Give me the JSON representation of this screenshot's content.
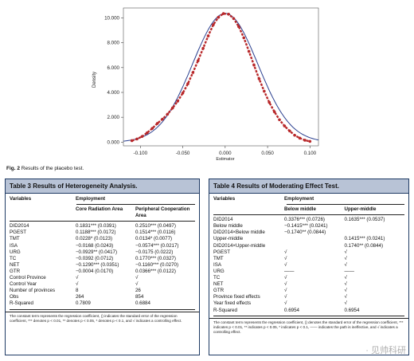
{
  "figure": {
    "caption_label": "Fig. 2",
    "caption_text": "Results of the placebo test.",
    "ylabel": "Density",
    "xlabel": "Estimator"
  },
  "chart_data": {
    "type": "scatter",
    "title": "",
    "xlabel": "Estimator",
    "ylabel": "Density",
    "xlim": [
      -0.12,
      0.11
    ],
    "ylim": [
      -0.3,
      10.8
    ],
    "x_ticks": [
      "-0.100",
      "-0.050",
      "0.000",
      "0.050",
      "0.100"
    ],
    "x_tick_values": [
      -0.1,
      -0.05,
      0.0,
      0.05,
      0.1
    ],
    "y_ticks": [
      "0.000",
      "2.000",
      "4.000",
      "6.000",
      "8.000",
      "10.000"
    ],
    "y_tick_values": [
      0,
      2,
      4,
      6,
      8,
      10
    ],
    "series": [
      {
        "kind": "kernel-density points (red dashed)",
        "color": "#b8282a",
        "x": [
          -0.11,
          -0.104,
          -0.098,
          -0.092,
          -0.086,
          -0.08,
          -0.074,
          -0.068,
          -0.062,
          -0.056,
          -0.05,
          -0.044,
          -0.038,
          -0.032,
          -0.026,
          -0.02,
          -0.014,
          -0.008,
          -0.002,
          0.004,
          0.01,
          0.016,
          0.022,
          0.028,
          0.034,
          0.04,
          0.046,
          0.052,
          0.058,
          0.064,
          0.07,
          0.076,
          0.082,
          0.088,
          0.094,
          0.1
        ],
        "y": [
          0.12,
          0.25,
          0.45,
          0.75,
          1.1,
          1.5,
          1.85,
          2.25,
          2.75,
          3.3,
          3.95,
          4.7,
          5.6,
          6.55,
          7.55,
          8.55,
          9.45,
          10.05,
          10.35,
          10.3,
          9.95,
          9.3,
          8.4,
          7.3,
          6.2,
          5.1,
          4.1,
          3.2,
          2.45,
          1.8,
          1.3,
          0.9,
          0.55,
          0.32,
          0.15,
          0.06
        ]
      },
      {
        "kind": "normal density (blue line)",
        "color": "#2a3f8f",
        "mean": 0.0,
        "sd": 0.0385
      }
    ]
  },
  "table3": {
    "title": "Table 3 Results of Heterogeneity Analysis.",
    "col_group": "Employment",
    "headers": [
      "Variables",
      "Core Radiation Area",
      "Peripheral Cooperation Area"
    ],
    "rows": [
      [
        "DID2014",
        "0.1831*** (0.0391)",
        "0.2510*** (0.0497)"
      ],
      [
        "PGEST",
        "0.1188*** (0.0172)",
        "0.1514*** (0.0116)"
      ],
      [
        "TMT",
        "0.0228* (0.0123)",
        "0.0134* (0.0077)"
      ],
      [
        "ISA",
        "−0.0168 (0.0243)",
        "−0.0574*** (0.0217)"
      ],
      [
        "URG",
        "−0.0929** (0.0417)",
        "−0.0175 (0.0222)"
      ],
      [
        "TC",
        "−0.0392 (0.0712)",
        "0.1770*** (0.0327)"
      ],
      [
        "NET",
        "−0.1290*** (0.0351)",
        "−0.1160*** (0.0270)"
      ],
      [
        "GTR",
        "−0.0004 (0.0170)",
        "0.0366*** (0.0122)"
      ],
      [
        "Control Province",
        "√",
        "√"
      ],
      [
        "Control Year",
        "√",
        "√"
      ],
      [
        "Number of provinces",
        "8",
        "26"
      ],
      [
        "Obs",
        "264",
        "854"
      ],
      [
        "R-Squared",
        "0.7809",
        "0.6884"
      ]
    ],
    "note": "The constant term represents the regression coefficient, () indicates the standard error of the regression coefficient, *** denotes p < 0.01, ** denotes p < 0.05, * denotes p < 0.1, and √ indicates a controlling effect."
  },
  "table4": {
    "title": "Table 4 Results of Moderating Effect Test.",
    "col_group": "Employment",
    "headers": [
      "Variables",
      "Below middle",
      "Upper-middle"
    ],
    "rows": [
      [
        "DID2014",
        "0.3376*** (0.0726)",
        "0.1635*** (0.0537)"
      ],
      [
        "Below middle",
        "−0.1415*** (0.0241)",
        ""
      ],
      [
        "DID2014×Below middle",
        "−0.1740** (0.0844)",
        ""
      ],
      [
        "Upper-middle",
        "",
        "0.1415*** (0.0241)"
      ],
      [
        "DID2014×Upper-middle",
        "",
        "0.1740** (0.0844)"
      ],
      [
        "PGEST",
        "√",
        "√"
      ],
      [
        "TMT",
        "√",
        "√"
      ],
      [
        "ISA",
        "√",
        "√"
      ],
      [
        "URG",
        "——",
        "——"
      ],
      [
        "TC",
        "√",
        "√"
      ],
      [
        "NET",
        "√",
        "√"
      ],
      [
        "GTR",
        "√",
        "√"
      ],
      [
        "Province fixed effects",
        "√",
        "√"
      ],
      [
        "Year fixed effects",
        "√",
        "√"
      ],
      [
        "R-Squared",
        "0.6954",
        "0.6954"
      ]
    ],
    "note": "The constant term represents the regression coefficient, () denotes the standard error of the regression coefficient, *** indicates p < 0.01, ** indicates p < 0.05, * indicates p < 0.1, —— indicates the path is ineffective, and √ indicates a controlling effect."
  },
  "watermark": "· 见帅科研"
}
